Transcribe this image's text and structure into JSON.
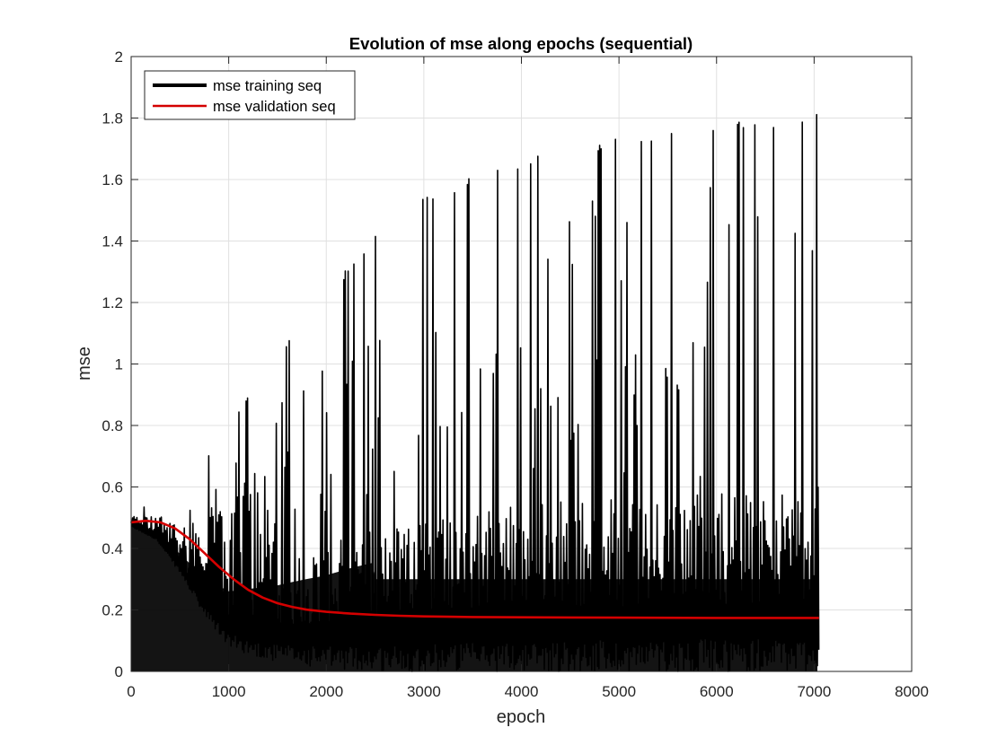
{
  "chart_data": {
    "type": "line",
    "title": "Evolution of mse along epochs (sequential)",
    "xlabel": "epoch",
    "ylabel": "mse",
    "xlim": [
      0,
      8000
    ],
    "ylim": [
      0,
      2
    ],
    "x_ticks": [
      0,
      1000,
      2000,
      3000,
      4000,
      5000,
      6000,
      7000,
      8000
    ],
    "x_tick_labels": [
      "0",
      "1000",
      "2000",
      "3000",
      "4000",
      "5000",
      "6000",
      "7000",
      "8000"
    ],
    "y_ticks": [
      0,
      0.2,
      0.4,
      0.6,
      0.8,
      1,
      1.2,
      1.4,
      1.6,
      1.8,
      2
    ],
    "y_tick_labels": [
      "0",
      "0.2",
      "0.4",
      "0.6",
      "0.8",
      "1",
      "1.2",
      "1.4",
      "1.6",
      "1.8",
      "2"
    ],
    "grid": true,
    "legend_position": "top-left",
    "series": [
      {
        "name": "mse training seq",
        "color": "#000000",
        "style": "oscillating",
        "x_end": 7050,
        "upper_envelope": {
          "x": [
            0,
            250,
            500,
            750,
            1000,
            1250,
            1500,
            1750,
            2000,
            2250,
            2500,
            2750,
            3000,
            3250,
            3500,
            3750,
            4000,
            4250,
            4500,
            4750,
            5000,
            5250,
            5500,
            5750,
            6000,
            6250,
            6500,
            6750,
            7050
          ],
          "y": [
            0.53,
            0.54,
            0.57,
            0.68,
            0.8,
            0.93,
            1.03,
            1.13,
            1.22,
            1.33,
            1.42,
            1.49,
            1.55,
            1.58,
            1.61,
            1.64,
            1.67,
            1.69,
            1.71,
            1.72,
            1.74,
            1.75,
            1.76,
            1.77,
            1.79,
            1.79,
            1.8,
            1.81,
            1.82
          ]
        },
        "lower_envelope": {
          "x": [
            0,
            250,
            500,
            750,
            1000,
            1250,
            1500,
            1750,
            2000,
            2500,
            3000,
            7050
          ],
          "y": [
            0.47,
            0.43,
            0.32,
            0.18,
            0.08,
            0.05,
            0.03,
            0.02,
            0.01,
            0.0,
            0.0,
            0.0
          ]
        }
      },
      {
        "name": "mse validation seq",
        "color": "#d40000",
        "x": [
          0,
          150,
          300,
          450,
          600,
          750,
          900,
          1050,
          1200,
          1350,
          1500,
          1650,
          1800,
          2000,
          2250,
          2500,
          2750,
          3000,
          3500,
          4000,
          5000,
          6000,
          7050
        ],
        "y": [
          0.485,
          0.49,
          0.485,
          0.465,
          0.43,
          0.385,
          0.34,
          0.3,
          0.265,
          0.24,
          0.222,
          0.21,
          0.201,
          0.194,
          0.188,
          0.184,
          0.181,
          0.179,
          0.177,
          0.176,
          0.175,
          0.174,
          0.174
        ]
      }
    ]
  }
}
